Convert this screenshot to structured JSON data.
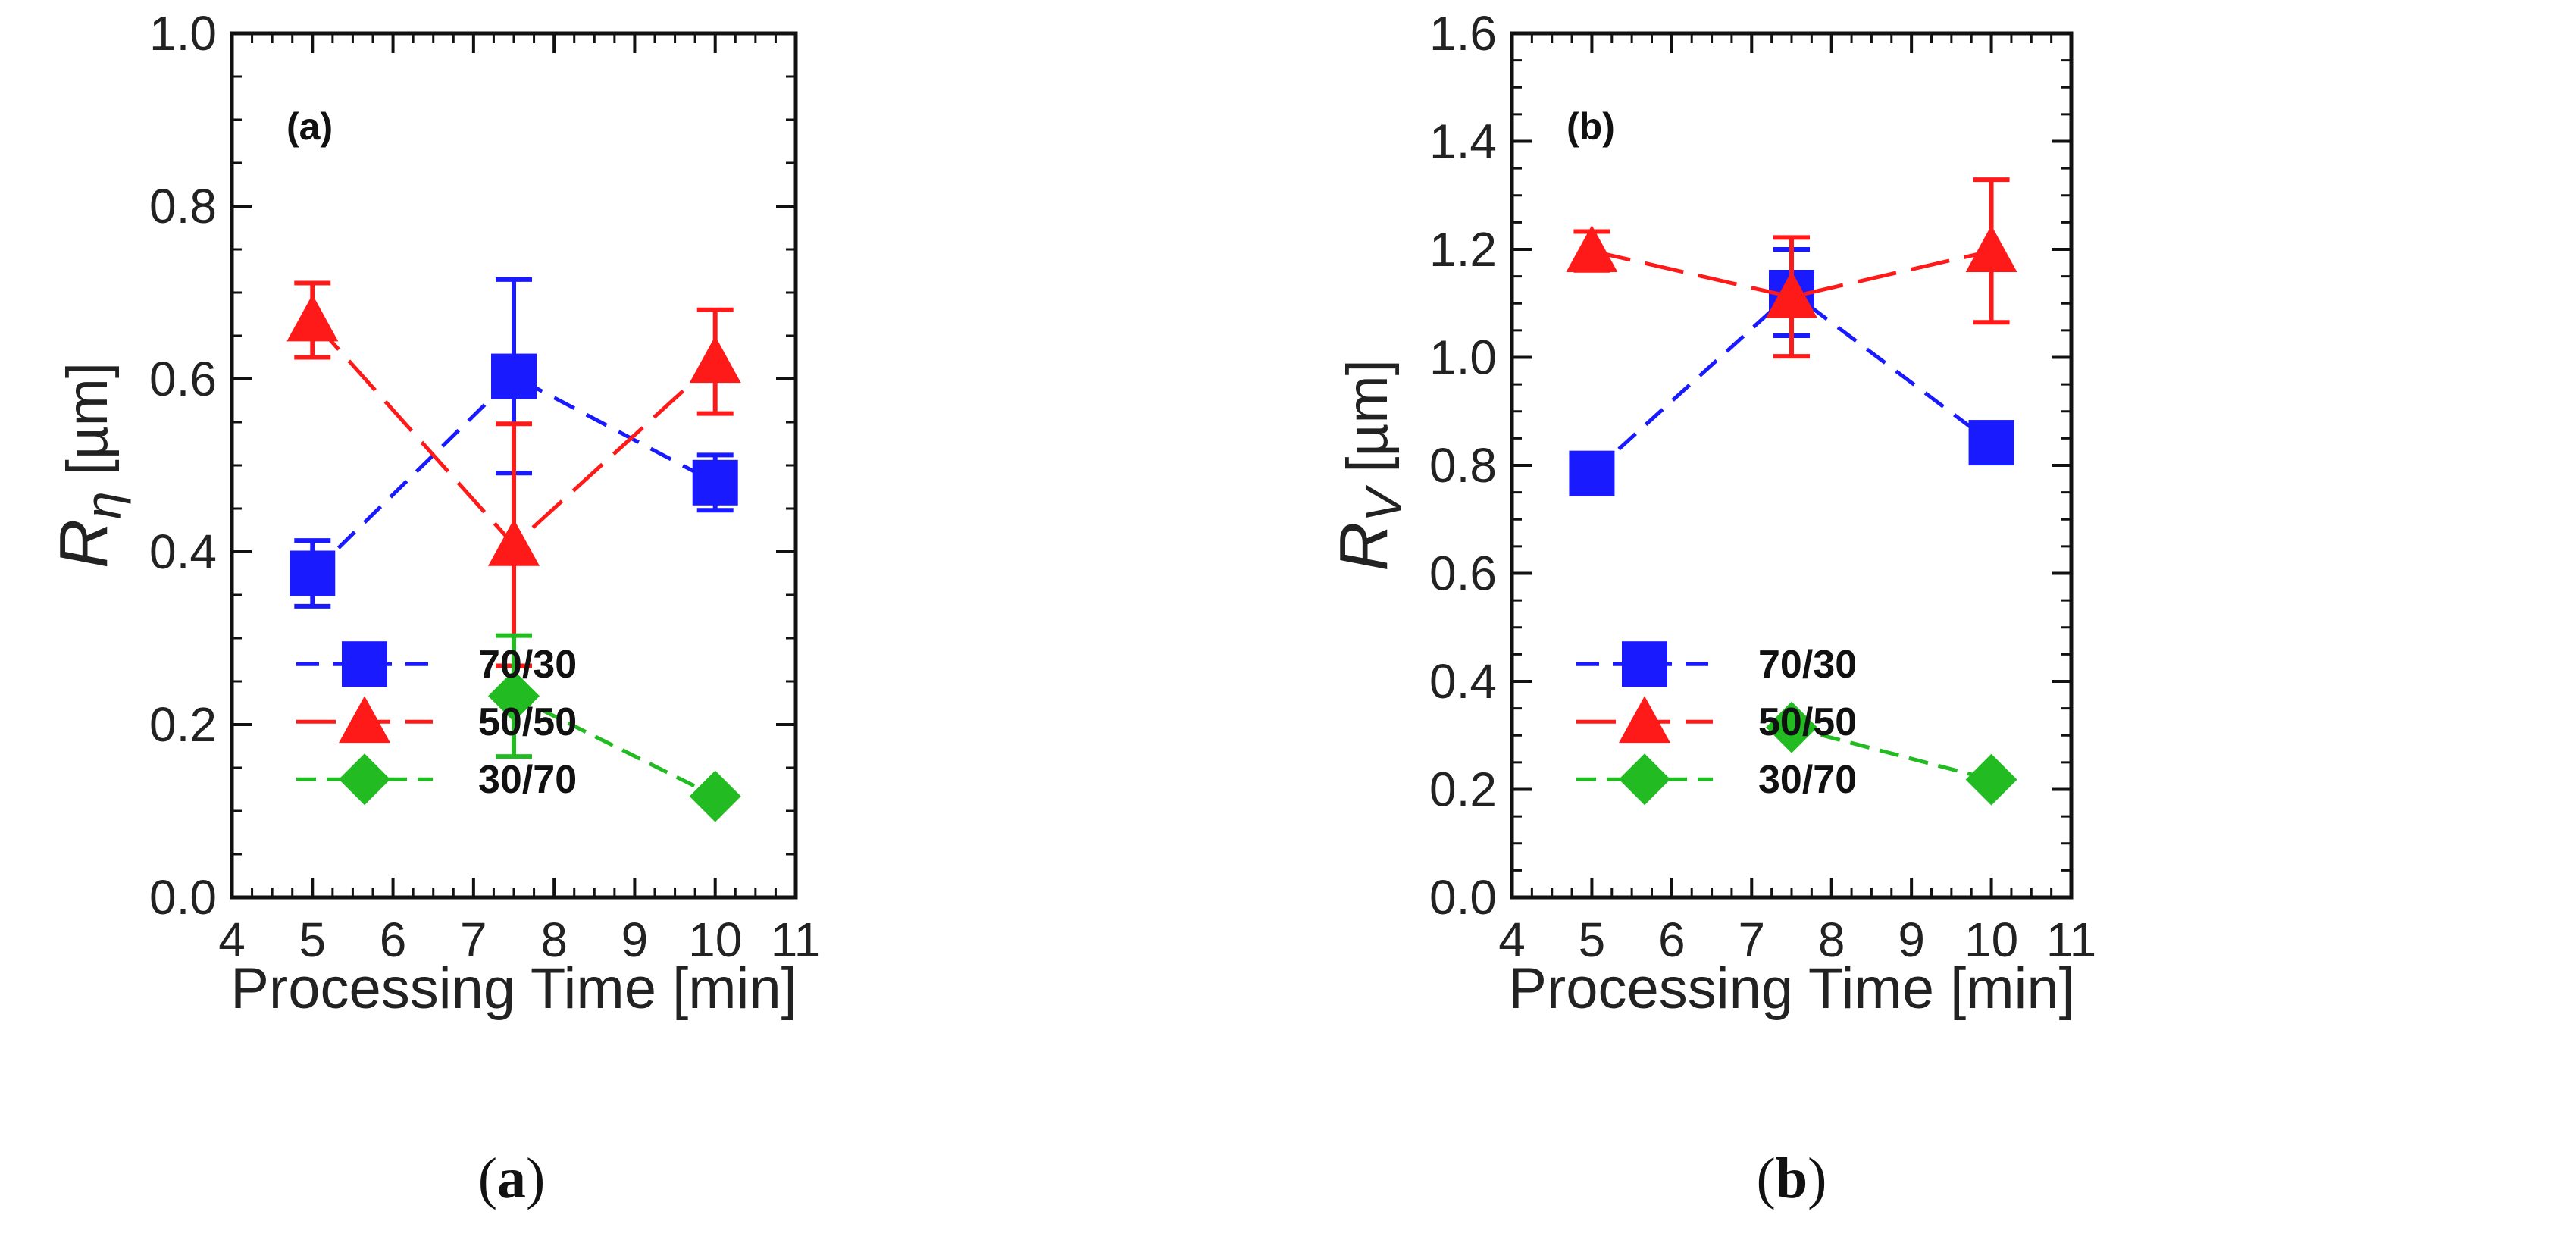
{
  "chart_data": [
    {
      "type": "line",
      "panel_tag": "(a)",
      "caption_open": "(",
      "caption_letter": "a",
      "caption_close": ")",
      "xlabel": "Processing Time [min]",
      "ylabel_symbol": "R",
      "ylabel_sub": "η",
      "ylabel_unit": " [µm]",
      "xlim": [
        4,
        11
      ],
      "ylim": [
        0,
        1.0
      ],
      "xticks": [
        4,
        5,
        6,
        7,
        8,
        9,
        10,
        11
      ],
      "yticks": [
        "0.0",
        "0.2",
        "0.4",
        "0.6",
        "0.8",
        "1.0"
      ],
      "legend_position": "bottom-left",
      "series": [
        {
          "name": "70/30",
          "color": "#1a1aff",
          "marker": "square",
          "x": [
            5,
            7.5,
            10
          ],
          "y": [
            0.375,
            0.603,
            0.48
          ],
          "err": [
            0.038,
            0.112,
            0.032
          ]
        },
        {
          "name": "50/50",
          "color": "#ff1a1a",
          "marker": "triangle",
          "x": [
            5,
            7.5,
            10
          ],
          "y": [
            0.668,
            0.408,
            0.62
          ],
          "err": [
            0.043,
            0.14,
            0.06
          ]
        },
        {
          "name": "30/70",
          "color": "#22bb22",
          "marker": "diamond",
          "x": [
            7.5,
            10
          ],
          "y": [
            0.233,
            0.117
          ],
          "err": [
            0.07,
            0
          ]
        }
      ]
    },
    {
      "type": "line",
      "panel_tag": "(b)",
      "caption_open": "(",
      "caption_letter": "b",
      "caption_close": ")",
      "xlabel": "Processing Time [min]",
      "ylabel_symbol": "R",
      "ylabel_sub": "V",
      "ylabel_unit": " [µm]",
      "xlim": [
        4,
        11
      ],
      "ylim": [
        0,
        1.6
      ],
      "xticks": [
        4,
        5,
        6,
        7,
        8,
        9,
        10,
        11
      ],
      "yticks": [
        "0.0",
        "0.2",
        "0.4",
        "0.6",
        "0.8",
        "1.0",
        "1.2",
        "1.4",
        "1.6"
      ],
      "legend_position": "bottom-left",
      "series": [
        {
          "name": "70/30",
          "color": "#1a1aff",
          "marker": "square",
          "x": [
            5,
            7.5,
            10
          ],
          "y": [
            0.785,
            1.12,
            0.842
          ],
          "err": [
            0,
            0.08,
            0
          ]
        },
        {
          "name": "50/50",
          "color": "#ff1a1a",
          "marker": "triangle",
          "x": [
            5,
            7.5,
            10
          ],
          "y": [
            1.197,
            1.112,
            1.197
          ],
          "err": [
            0.036,
            0.11,
            0.132
          ]
        },
        {
          "name": "30/70",
          "color": "#22bb22",
          "marker": "diamond",
          "x": [
            7.5,
            10
          ],
          "y": [
            0.315,
            0.218
          ],
          "err": [
            0,
            0
          ]
        }
      ]
    }
  ]
}
